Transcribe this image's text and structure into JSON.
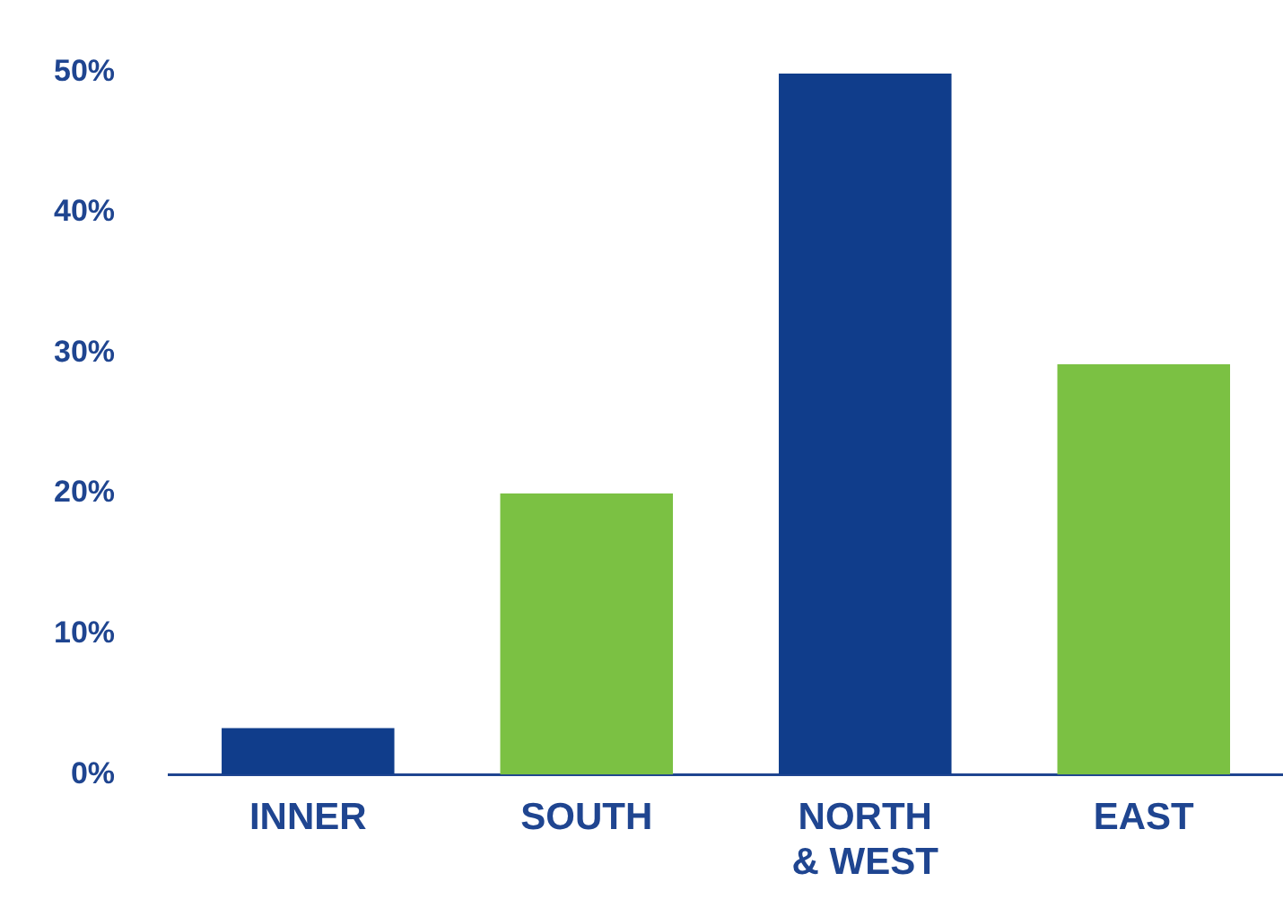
{
  "chart_data": {
    "type": "bar",
    "categories": [
      "INNER",
      "SOUTH",
      "NORTH & WEST",
      "EAST"
    ],
    "values": [
      3.3,
      20,
      49.9,
      29.2
    ],
    "colors": [
      "#103d8b",
      "#7bc143",
      "#103d8b",
      "#7bc143"
    ],
    "ylim": [
      0,
      50
    ],
    "yticks": [
      {
        "value": 0,
        "label": "0%"
      },
      {
        "value": 10,
        "label": "10%"
      },
      {
        "value": 20,
        "label": "20%"
      },
      {
        "value": 30,
        "label": "30%"
      },
      {
        "value": 40,
        "label": "40%"
      },
      {
        "value": 50,
        "label": "50%"
      }
    ],
    "grid": false
  }
}
